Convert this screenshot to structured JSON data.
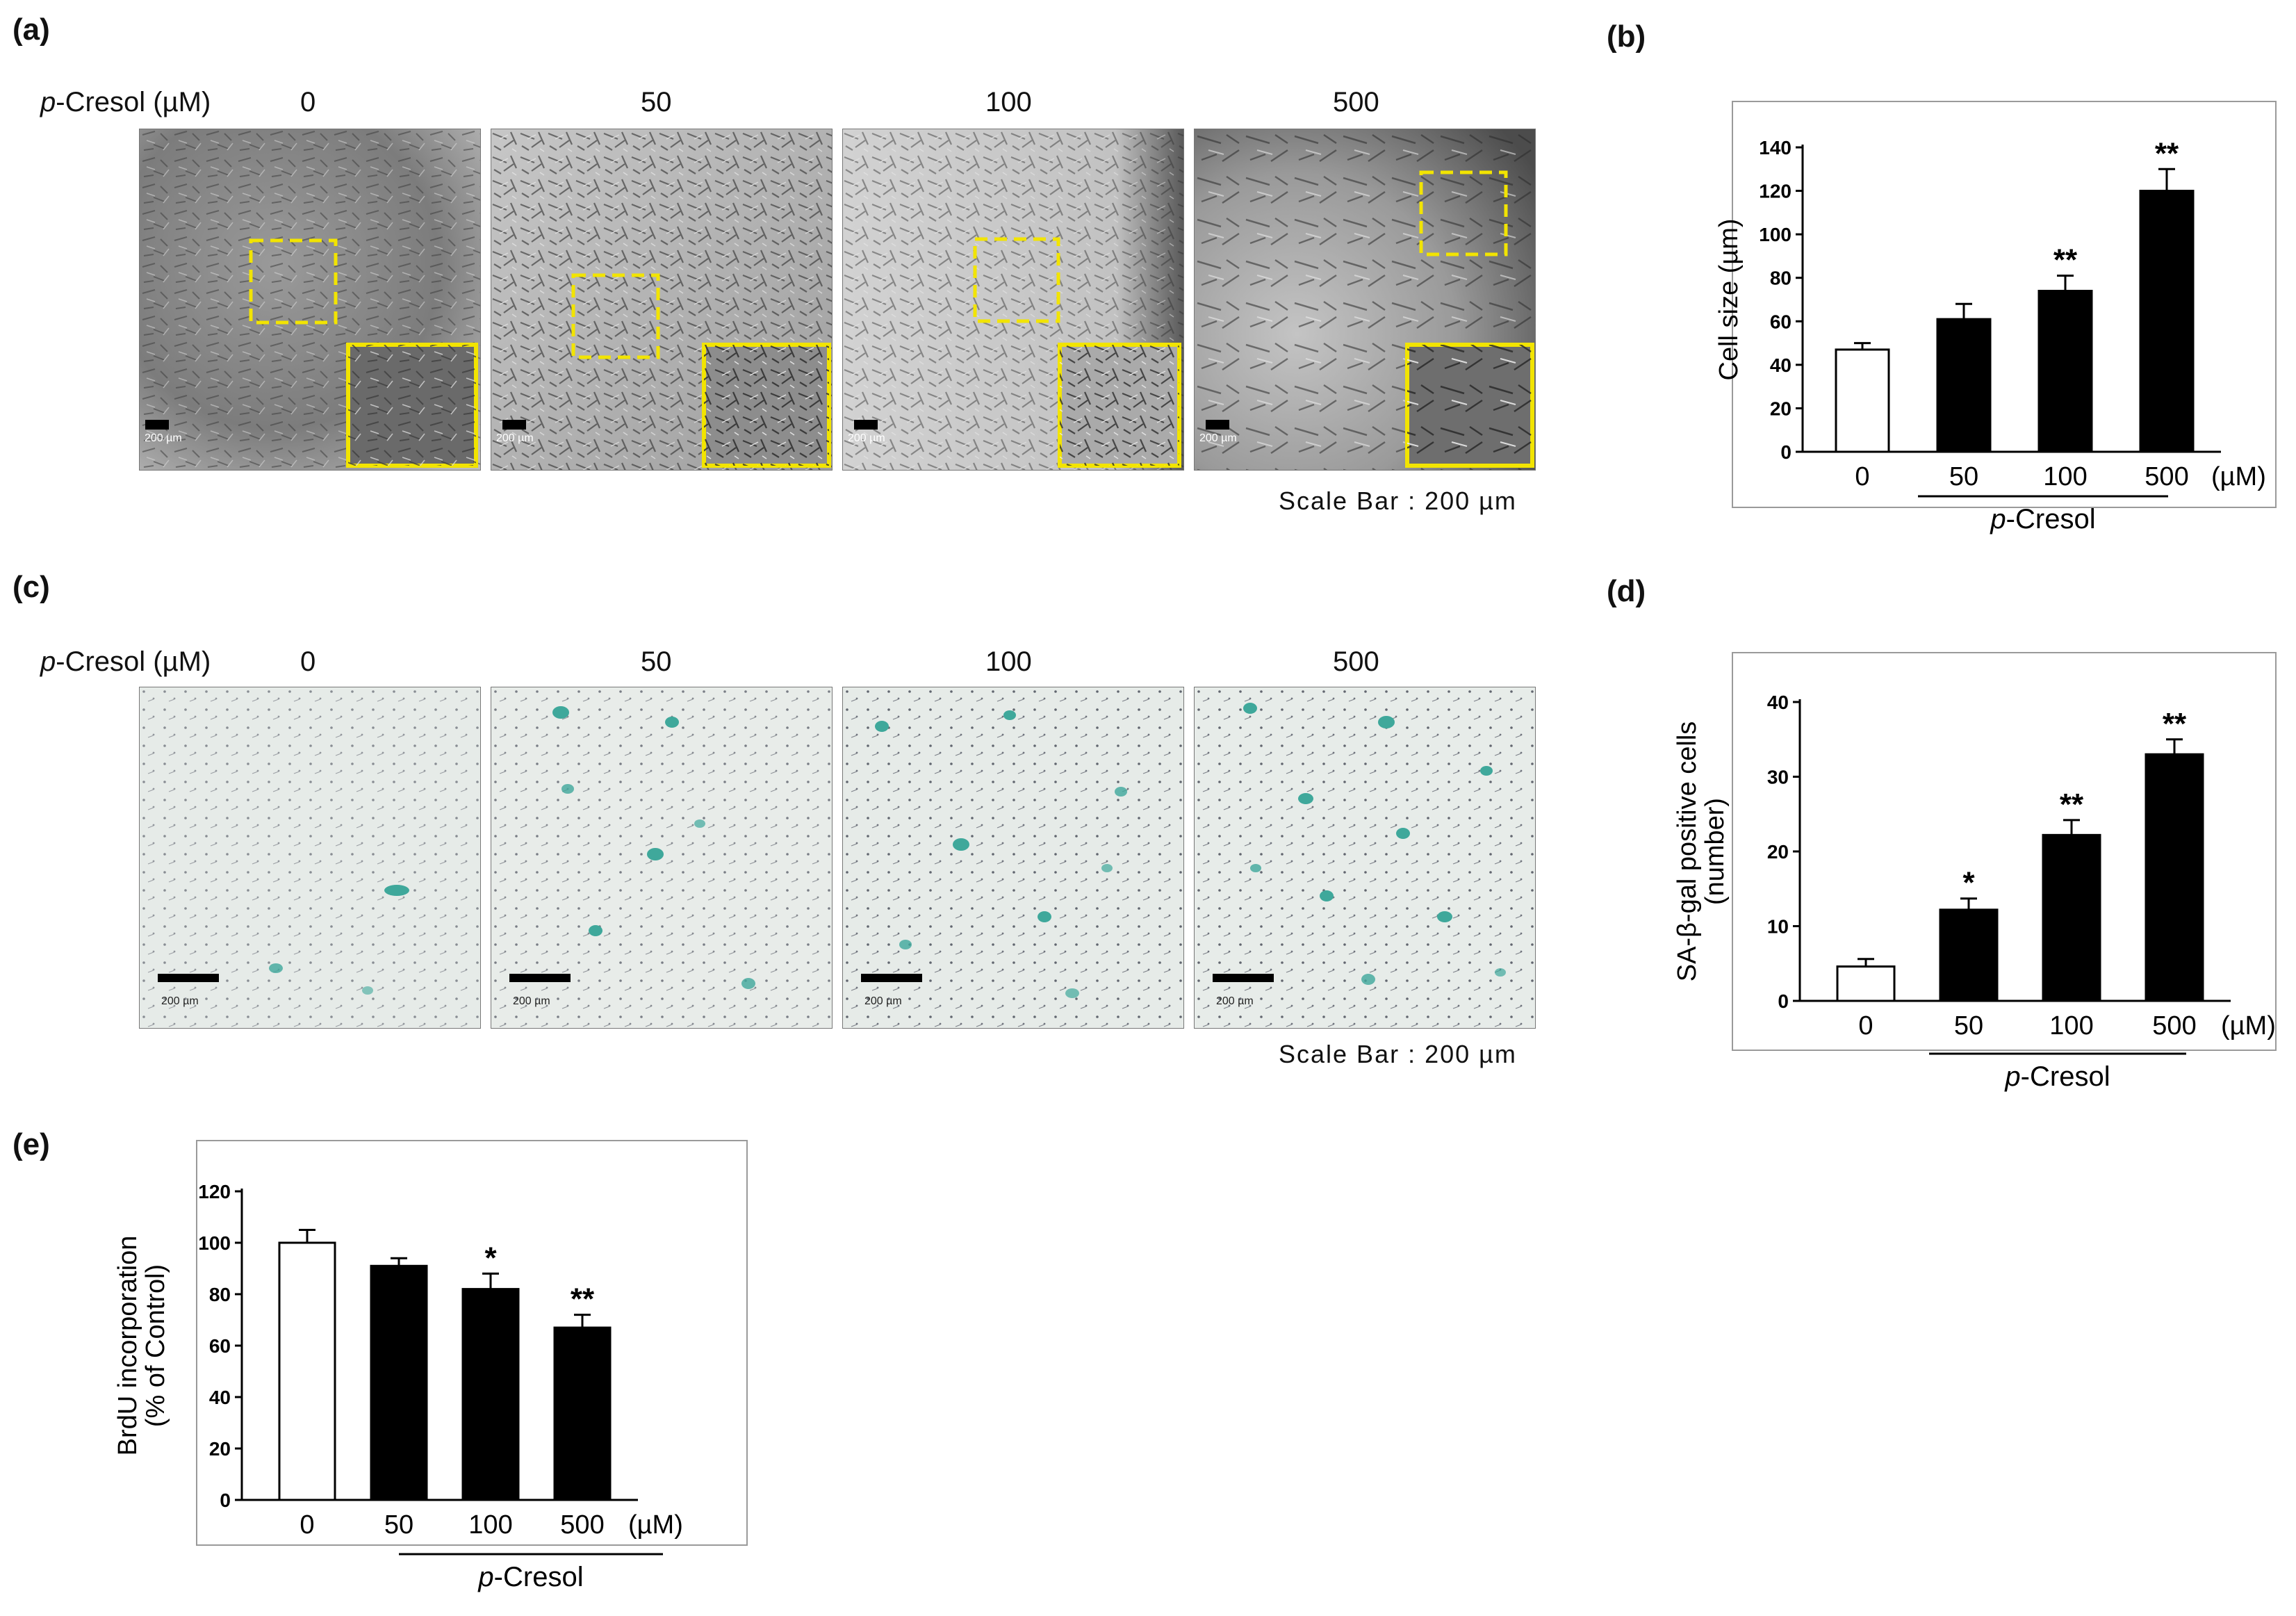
{
  "panels": {
    "a": {
      "letter": "(a)",
      "row_label_prefix": "p",
      "row_label_suffix": "-Cresol (µM)",
      "concentrations": [
        "0",
        "50",
        "100",
        "500"
      ],
      "image_scale_bar_labels": [
        "200 µm",
        "200 µm",
        "200 µm",
        "200 µm"
      ],
      "scale_caption": "Scale Bar : 200 µm"
    },
    "c": {
      "letter": "(c)",
      "row_label_prefix": "p",
      "row_label_suffix": "-Cresol (µM)",
      "concentrations": [
        "0",
        "50",
        "100",
        "500"
      ],
      "image_scale_bar_labels": [
        "200 µm",
        "200 µm",
        "200 µm",
        "200 µm"
      ],
      "scale_caption": "Scale Bar : 200 µm"
    },
    "b": {
      "letter": "(b)"
    },
    "d": {
      "letter": "(d)"
    },
    "e": {
      "letter": "(e)"
    }
  },
  "colors": {
    "inset_highlight": "#f2e400",
    "bar_fill": "#000000",
    "control_bar_fill": "#ffffff",
    "stain_blue_green": "#3fa89b",
    "brightfield_bg": "#e8ecea",
    "phase_contrast_bg": "#8c8c8c"
  },
  "chart_data": [
    {
      "id": "b",
      "type": "bar",
      "categories": [
        "0",
        "50",
        "100",
        "500"
      ],
      "unit_label": "(µM)",
      "values": [
        47,
        61,
        74,
        120
      ],
      "errors": [
        3,
        7,
        7,
        10
      ],
      "significance": [
        "",
        "",
        "**",
        "**"
      ],
      "ylabel": "Cell size (µm)",
      "ylim": [
        0,
        140
      ],
      "yticks": [
        0,
        20,
        40,
        60,
        80,
        100,
        120,
        140
      ],
      "group_label_prefix": "p",
      "group_label_suffix": "-Cresol",
      "control_open": true
    },
    {
      "id": "d",
      "type": "bar",
      "categories": [
        "0",
        "50",
        "100",
        "500"
      ],
      "unit_label": "(µM)",
      "values": [
        4.6,
        12.2,
        22.2,
        33
      ],
      "errors": [
        1,
        1.5,
        2,
        2
      ],
      "significance": [
        "",
        "*",
        "**",
        "**"
      ],
      "ylabel_lines": [
        "SA-β-gal positive cells",
        "(number)"
      ],
      "ylim": [
        0,
        40
      ],
      "yticks": [
        0,
        10,
        20,
        30,
        40
      ],
      "group_label_prefix": "p",
      "group_label_suffix": "-Cresol",
      "control_open": true
    },
    {
      "id": "e",
      "type": "bar",
      "categories": [
        "0",
        "50",
        "100",
        "500"
      ],
      "unit_label": "(µM)",
      "values": [
        100,
        91,
        82,
        67
      ],
      "errors": [
        5,
        3,
        6,
        5
      ],
      "significance": [
        "",
        "",
        "*",
        "**"
      ],
      "ylabel_lines": [
        "BrdU incorporation",
        "(% of Control)"
      ],
      "ylim": [
        0,
        120
      ],
      "yticks": [
        0,
        20,
        40,
        60,
        80,
        100,
        120
      ],
      "group_label_prefix": "p",
      "group_label_suffix": "-Cresol",
      "control_open": true
    }
  ]
}
